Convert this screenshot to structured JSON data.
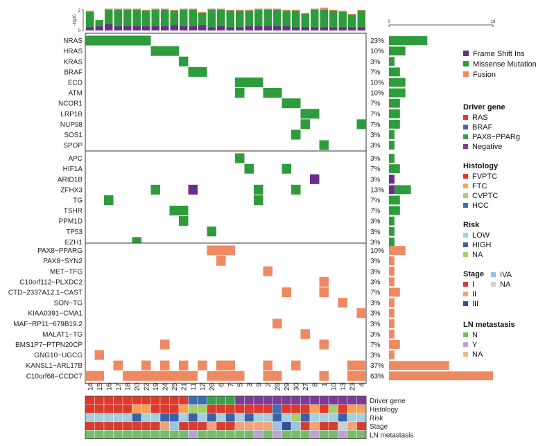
{
  "chart_data": {
    "type": "heatmap",
    "samples": [
      "14",
      "15",
      "16",
      "17",
      "18",
      "20",
      "22",
      "19",
      "24",
      "25",
      "21",
      "11",
      "12",
      "26",
      "6",
      "7",
      "5",
      "3",
      "9",
      "2",
      "28",
      "29",
      "30",
      "27",
      "8",
      "1",
      "10",
      "13",
      "23",
      "4"
    ],
    "top_axis": {
      "label": "-log10",
      "ticks": [
        "0",
        "2"
      ]
    },
    "right_axis": {
      "ticks": [
        "0",
        "19"
      ]
    },
    "top_bars": [
      {
        "fsi": 0.3,
        "mis": 1.5,
        "fus": 0.1
      },
      {
        "fsi": 0.4,
        "mis": 0.6,
        "fus": 0.0
      },
      {
        "fsi": 0.6,
        "mis": 1.4,
        "fus": 0.1
      },
      {
        "fsi": 0.4,
        "mis": 1.6,
        "fus": 0.1
      },
      {
        "fsi": 0.4,
        "mis": 1.6,
        "fus": 0.1
      },
      {
        "fsi": 0.4,
        "mis": 1.6,
        "fus": 0.1
      },
      {
        "fsi": 0.4,
        "mis": 1.5,
        "fus": 0.1
      },
      {
        "fsi": 0.4,
        "mis": 1.6,
        "fus": 0.1
      },
      {
        "fsi": 0.4,
        "mis": 1.6,
        "fus": 0.1
      },
      {
        "fsi": 0.5,
        "mis": 1.4,
        "fus": 0.1
      },
      {
        "fsi": 0.4,
        "mis": 1.6,
        "fus": 0.1
      },
      {
        "fsi": 0.4,
        "mis": 1.6,
        "fus": 0.1
      },
      {
        "fsi": 0.5,
        "mis": 1.2,
        "fus": 0.1
      },
      {
        "fsi": 0.3,
        "mis": 1.7,
        "fus": 0.1
      },
      {
        "fsi": 0.4,
        "mis": 1.6,
        "fus": 0.1
      },
      {
        "fsi": 0.3,
        "mis": 1.6,
        "fus": 0.1
      },
      {
        "fsi": 0.3,
        "mis": 1.6,
        "fus": 0.1
      },
      {
        "fsi": 0.4,
        "mis": 1.5,
        "fus": 0.1
      },
      {
        "fsi": 0.4,
        "mis": 1.6,
        "fus": 0.1
      },
      {
        "fsi": 0.4,
        "mis": 1.6,
        "fus": 0.1
      },
      {
        "fsi": 0.4,
        "mis": 1.6,
        "fus": 0.1
      },
      {
        "fsi": 0.4,
        "mis": 1.5,
        "fus": 0.1
      },
      {
        "fsi": 0.3,
        "mis": 1.6,
        "fus": 0.1
      },
      {
        "fsi": 0.3,
        "mis": 1.3,
        "fus": 0.1
      },
      {
        "fsi": 0.3,
        "mis": 1.7,
        "fus": 0.1
      },
      {
        "fsi": 0.3,
        "mis": 1.7,
        "fus": 0.2
      },
      {
        "fsi": 0.3,
        "mis": 1.6,
        "fus": 0.1
      },
      {
        "fsi": 0.3,
        "mis": 1.5,
        "fus": 0.1
      },
      {
        "fsi": 0.3,
        "mis": 1.2,
        "fus": 0.1
      },
      {
        "fsi": 0.3,
        "mis": 1.6,
        "fus": 0.1
      }
    ],
    "groups": [
      {
        "genes": [
          {
            "name": "NRAS",
            "pct": "23%",
            "count": 7,
            "cells": [
              [
                0,
                "M"
              ],
              [
                1,
                "M"
              ],
              [
                2,
                "M"
              ],
              [
                3,
                "M"
              ],
              [
                4,
                "M"
              ],
              [
                5,
                "M"
              ],
              [
                6,
                "M"
              ]
            ]
          },
          {
            "name": "HRAS",
            "pct": "10%",
            "count": 3,
            "cells": [
              [
                7,
                "M"
              ],
              [
                8,
                "M"
              ],
              [
                9,
                "M"
              ]
            ]
          },
          {
            "name": "KRAS",
            "pct": "3%",
            "count": 1,
            "cells": [
              [
                10,
                "M"
              ]
            ]
          },
          {
            "name": "BRAF",
            "pct": "7%",
            "count": 2,
            "cells": [
              [
                11,
                "M"
              ],
              [
                12,
                "M"
              ]
            ]
          },
          {
            "name": "ECD",
            "pct": "10%",
            "count": 3,
            "cells": [
              [
                16,
                "M"
              ],
              [
                17,
                "M"
              ],
              [
                18,
                "M"
              ]
            ]
          },
          {
            "name": "ATM",
            "pct": "10%",
            "count": 3,
            "cells": [
              [
                16,
                "M"
              ],
              [
                19,
                "M"
              ],
              [
                20,
                "M"
              ]
            ]
          },
          {
            "name": "NCOR1",
            "pct": "7%",
            "count": 2,
            "cells": [
              [
                21,
                "M"
              ],
              [
                22,
                "M"
              ]
            ]
          },
          {
            "name": "LRP1B",
            "pct": "7%",
            "count": 2,
            "cells": [
              [
                23,
                "M"
              ],
              [
                24,
                "M"
              ]
            ]
          },
          {
            "name": "NUP98",
            "pct": "7%",
            "count": 2,
            "cells": [
              [
                23,
                "M"
              ],
              [
                29,
                "M"
              ]
            ]
          },
          {
            "name": "SOS1",
            "pct": "3%",
            "count": 1,
            "cells": [
              [
                22,
                "M"
              ]
            ]
          },
          {
            "name": "SPOP",
            "pct": "3%",
            "count": 1,
            "cells": [
              [
                25,
                "M"
              ]
            ]
          }
        ]
      },
      {
        "genes": [
          {
            "name": "APC",
            "pct": "3%",
            "count": 1,
            "cells": [
              [
                16,
                "M"
              ]
            ]
          },
          {
            "name": "HIF1A",
            "pct": "7%",
            "count": 2,
            "cells": [
              [
                17,
                "M"
              ],
              [
                21,
                "M"
              ]
            ]
          },
          {
            "name": "ARID1B",
            "pct": "3%",
            "count": 1,
            "cells": [
              [
                24,
                "F"
              ]
            ]
          },
          {
            "name": "ZFHX3",
            "pct": "13%",
            "count": 4,
            "cells": [
              [
                7,
                "M"
              ],
              [
                11,
                "F"
              ],
              [
                18,
                "M"
              ],
              [
                22,
                "M"
              ]
            ]
          },
          {
            "name": "TG",
            "pct": "7%",
            "count": 2,
            "cells": [
              [
                2,
                "M"
              ],
              [
                18,
                "M"
              ]
            ]
          },
          {
            "name": "TSHR",
            "pct": "7%",
            "count": 2,
            "cells": [
              [
                9,
                "M"
              ],
              [
                10,
                "M"
              ]
            ]
          },
          {
            "name": "PPM1D",
            "pct": "3%",
            "count": 1,
            "cells": [
              [
                10,
                "M"
              ]
            ]
          },
          {
            "name": "TP53",
            "pct": "3%",
            "count": 1,
            "cells": [
              [
                13,
                "M"
              ]
            ]
          },
          {
            "name": "EZH1",
            "pct": "3%",
            "count": 1,
            "cells": [
              [
                5,
                "M"
              ]
            ]
          }
        ]
      },
      {
        "genes": [
          {
            "name": "PAX8−PPARG",
            "pct": "10%",
            "count": 3,
            "cells": [
              [
                13,
                "U"
              ],
              [
                14,
                "U"
              ],
              [
                15,
                "U"
              ]
            ]
          },
          {
            "name": "PAX8−SYN2",
            "pct": "3%",
            "count": 1,
            "cells": [
              [
                14,
                "U"
              ]
            ]
          },
          {
            "name": "MET−TFG",
            "pct": "3%",
            "count": 1,
            "cells": [
              [
                19,
                "U"
              ]
            ]
          },
          {
            "name": "C10orf112−PLXDC2",
            "pct": "3%",
            "count": 1,
            "cells": [
              [
                25,
                "U"
              ]
            ]
          },
          {
            "name": "CTD−2337A12.1−CAST",
            "pct": "7%",
            "count": 2,
            "cells": [
              [
                21,
                "U"
              ],
              [
                25,
                "U"
              ]
            ]
          },
          {
            "name": "SON−TG",
            "pct": "3%",
            "count": 1,
            "cells": [
              [
                27,
                "U"
              ]
            ]
          },
          {
            "name": "KIAA0391−CMA1",
            "pct": "3%",
            "count": 1,
            "cells": [
              [
                29,
                "U"
              ]
            ]
          },
          {
            "name": "MAF−RP11−679B19.2",
            "pct": "3%",
            "count": 1,
            "cells": [
              [
                20,
                "U"
              ]
            ]
          },
          {
            "name": "MALAT1−TG",
            "pct": "3%",
            "count": 1,
            "cells": [
              [
                23,
                "U"
              ]
            ]
          },
          {
            "name": "BMS1P7−PTPN20CP",
            "pct": "7%",
            "count": 2,
            "cells": [
              [
                8,
                "U"
              ],
              [
                25,
                "U"
              ]
            ]
          },
          {
            "name": "GNG10−UGCG",
            "pct": "3%",
            "count": 1,
            "cells": [
              [
                1,
                "U"
              ]
            ]
          },
          {
            "name": "KANSL1−ARL17B",
            "pct": "37%",
            "count": 11,
            "cells": [
              [
                3,
                "U"
              ],
              [
                6,
                "U"
              ],
              [
                8,
                "U"
              ],
              [
                10,
                "U"
              ],
              [
                12,
                "U"
              ],
              [
                14,
                "U"
              ],
              [
                15,
                "U"
              ],
              [
                19,
                "U"
              ],
              [
                22,
                "U"
              ],
              [
                28,
                "U"
              ],
              [
                29,
                "U"
              ]
            ]
          },
          {
            "name": "C10orf68−CCDC7",
            "pct": "63%",
            "count": 19,
            "cells": [
              [
                0,
                "U"
              ],
              [
                1,
                "U"
              ],
              [
                4,
                "U"
              ],
              [
                5,
                "U"
              ],
              [
                6,
                "U"
              ],
              [
                7,
                "U"
              ],
              [
                8,
                "U"
              ],
              [
                9,
                "U"
              ],
              [
                10,
                "U"
              ],
              [
                11,
                "U"
              ],
              [
                13,
                "U"
              ],
              [
                14,
                "U"
              ],
              [
                15,
                "U"
              ],
              [
                16,
                "U"
              ],
              [
                19,
                "U"
              ],
              [
                20,
                "U"
              ],
              [
                25,
                "U"
              ],
              [
                28,
                "U"
              ],
              [
                29,
                "U"
              ]
            ]
          }
        ]
      }
    ],
    "tracks": [
      {
        "name": "Driver gene",
        "values": [
          "RAS",
          "RAS",
          "RAS",
          "RAS",
          "RAS",
          "RAS",
          "RAS",
          "RAS",
          "RAS",
          "RAS",
          "RAS",
          "BRAF",
          "BRAF",
          "PAX8",
          "PAX8",
          "PAX8",
          "NEG",
          "NEG",
          "NEG",
          "NEG",
          "NEG",
          "NEG",
          "NEG",
          "NEG",
          "NEG",
          "NEG",
          "NEG",
          "NEG",
          "NEG",
          "NEG"
        ]
      },
      {
        "name": "Histology",
        "values": [
          "FVPTC",
          "FVPTC",
          "FVPTC",
          "FVPTC",
          "FVPTC",
          "FTC",
          "FTC",
          "FVPTC",
          "FVPTC",
          "FVPTC",
          "FTC",
          "CVPTC",
          "CVPTC",
          "FVPTC",
          "FVPTC",
          "FVPTC",
          "FVPTC",
          "FVPTC",
          "FVPTC",
          "FVPTC",
          "HCC",
          "FVPTC",
          "FVPTC",
          "FVPTC",
          "FTC",
          "FVPTC",
          "CVPTC",
          "FVPTC",
          "FTC",
          "FTC"
        ]
      },
      {
        "name": "Risk",
        "values": [
          "LOW",
          "LOW",
          "LOW",
          "LOW",
          "LOW",
          "HIGH",
          "LOW",
          "LOW",
          "HIGH",
          "HIGH",
          "LOW",
          "HIGH",
          "LOW",
          "HIGH",
          "LOW",
          "HIGH",
          "LOW",
          "HIGH",
          "LOW",
          "LOW",
          "HIGH",
          "LOW",
          "NA",
          "HIGH",
          "LOW",
          "LOW",
          "LOW",
          "HIGH",
          "LOW",
          "LOW"
        ]
      },
      {
        "name": "Stage",
        "values": [
          "I",
          "I",
          "I",
          "I",
          "I",
          "I",
          "I",
          "I",
          "II",
          "IVA",
          "I",
          "I",
          "I",
          "II",
          "I",
          "I",
          "II",
          "II",
          "II",
          "II",
          "IVA",
          "III",
          "IVA",
          "I",
          "II",
          "I",
          "I",
          "NA",
          "II",
          "I"
        ]
      },
      {
        "name": "LN metastasis",
        "values": [
          "N",
          "N",
          "N",
          "N",
          "N",
          "N",
          "N",
          "N",
          "N",
          "N",
          "N",
          "Y",
          "N",
          "N",
          "N",
          "N",
          "N",
          "N",
          "Y",
          "N",
          "Y",
          "N",
          "N",
          "N",
          "Y",
          "N",
          "N",
          "Y",
          "N",
          "N"
        ]
      }
    ]
  },
  "legend": {
    "mutation_types": [
      {
        "key": "F",
        "label": "Frame Shift Ins",
        "color": "#6b2d8c"
      },
      {
        "key": "M",
        "label": "Missense Mutation",
        "color": "#2e9c3c"
      },
      {
        "key": "U",
        "label": "Fusion",
        "color": "#ee8a62"
      }
    ],
    "annotation_groups": [
      {
        "title": "Driver gene",
        "items": [
          {
            "key": "RAS",
            "label": "RAS",
            "color": "#de3a2c"
          },
          {
            "key": "BRAF",
            "label": "BRAF",
            "color": "#3b6db3"
          },
          {
            "key": "PAX8",
            "label": "PAX8−PPARg",
            "color": "#3aa14a"
          },
          {
            "key": "NEG",
            "label": "Negative",
            "color": "#7e3a96"
          }
        ]
      },
      {
        "title": "Histology",
        "items": [
          {
            "key": "FVPTC",
            "label": "FVPTC",
            "color": "#de3a2c"
          },
          {
            "key": "FTC",
            "label": "FTC",
            "color": "#f4a15a"
          },
          {
            "key": "CVPTC",
            "label": "CVPTC",
            "color": "#a5cf6b"
          },
          {
            "key": "HCC",
            "label": "HCC",
            "color": "#3c72b5"
          }
        ]
      },
      {
        "title": "Risk",
        "items": [
          {
            "key": "LOW",
            "label": "LOW",
            "color": "#a6cfe0"
          },
          {
            "key": "HIGH",
            "label": "HIGH",
            "color": "#3a62aa"
          },
          {
            "key": "NA",
            "label": "NA",
            "color": "#a8cf6e"
          }
        ]
      },
      {
        "title": "Stage",
        "items": [
          {
            "key": "I",
            "label": "I",
            "color": "#d83c2e"
          },
          {
            "key": "II",
            "label": "II",
            "color": "#f1a47a"
          },
          {
            "key": "III",
            "label": "III",
            "color": "#2f4f9a"
          },
          {
            "key": "IVA",
            "label": "IVA",
            "color": "#9dc3e2"
          },
          {
            "key": "NA",
            "label": "NA",
            "color": "#cfcfcf"
          }
        ]
      },
      {
        "title": "LN metastasis",
        "items": [
          {
            "key": "N",
            "label": "N",
            "color": "#77bc6b"
          },
          {
            "key": "Y",
            "label": "Y",
            "color": "#b9a6d2"
          },
          {
            "key": "NA",
            "label": "NA",
            "color": "#f6b884"
          }
        ]
      }
    ]
  }
}
